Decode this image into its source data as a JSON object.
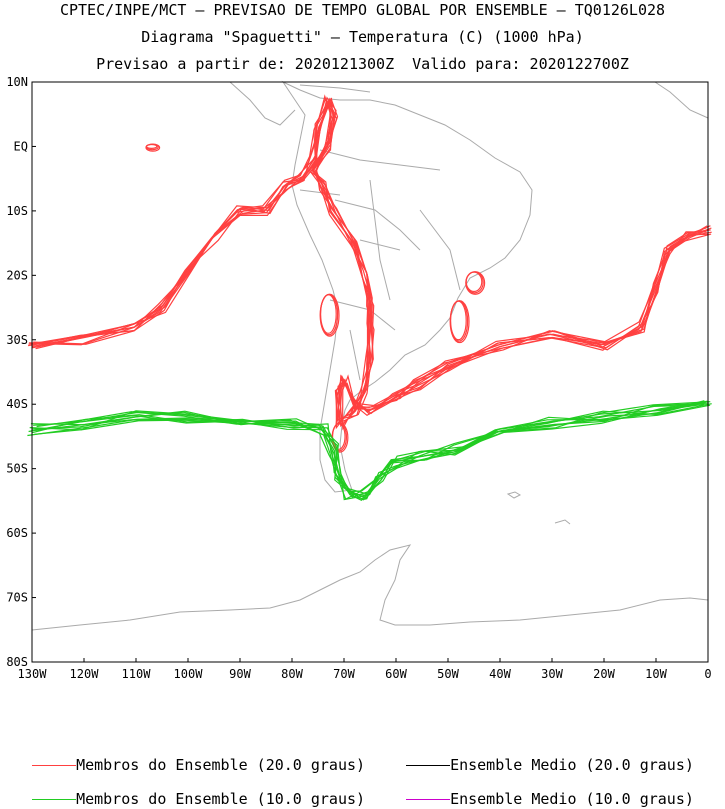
{
  "header": {
    "line1": "CPTEC/INPE/MCT – PREVISAO DE TEMPO GLOBAL POR ENSEMBLE – TQ0126L028",
    "line2": "Diagrama \"Spaguetti\" – Temperatura (C) (1000 hPa)",
    "line3": "Previsao a partir de: 2020121300Z  Valido para: 2020122700Z"
  },
  "map": {
    "lat_ticks": [
      "10N",
      "EQ",
      "10S",
      "20S",
      "30S",
      "40S",
      "50S",
      "60S",
      "70S",
      "80S"
    ],
    "lat_values": [
      10,
      0,
      -10,
      -20,
      -30,
      -40,
      -50,
      -60,
      -70,
      -80
    ],
    "lon_ticks": [
      "130W",
      "120W",
      "110W",
      "100W",
      "90W",
      "80W",
      "70W",
      "60W",
      "50W",
      "40W",
      "30W",
      "20W",
      "10W",
      "0"
    ],
    "lon_values": [
      -130,
      -120,
      -110,
      -100,
      -90,
      -80,
      -70,
      -60,
      -50,
      -40,
      -30,
      -20,
      -10,
      0
    ],
    "extent": {
      "lon": [
        -130,
        0
      ],
      "lat": [
        -80,
        10
      ]
    },
    "coastline_color": "#aaaaaa",
    "red_color": "#ff4040",
    "green_color": "#22cc22"
  },
  "legend": {
    "items": [
      {
        "label": "Membros do Ensemble (20.0 graus)",
        "color": "#ff4040"
      },
      {
        "label": "Ensemble Medio (20.0 graus)",
        "color": "#000000"
      },
      {
        "label": "Membros do Ensemble (10.0 graus)",
        "color": "#22cc22"
      },
      {
        "label": "Ensemble Medio (10.0 graus)",
        "color": "#cc00cc"
      }
    ]
  }
}
